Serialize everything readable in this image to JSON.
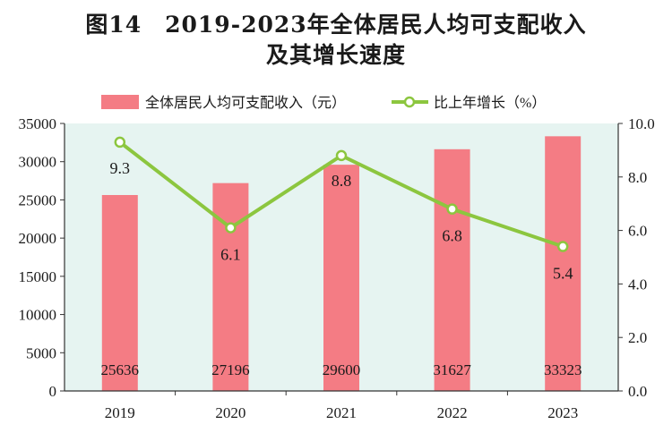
{
  "title_line1": "图14　2019-2023年全体居民人均可支配收入",
  "title_line2": "及其增长速度",
  "colors": {
    "bar": "#f47c84",
    "line": "#8cc63f",
    "plot_bg": "#e6f4f1",
    "axis": "#333333"
  },
  "chart_data": {
    "type": "bar",
    "categories": [
      "2019",
      "2020",
      "2021",
      "2022",
      "2023"
    ],
    "series": [
      {
        "name": "全体居民人均可支配收入（元）",
        "type": "bar",
        "axis": "left",
        "values": [
          25636,
          27196,
          29600,
          31627,
          33323
        ],
        "labels": [
          "25636",
          "27196",
          "29600",
          "31627",
          "33323"
        ]
      },
      {
        "name": "比上年增长（%）",
        "type": "line",
        "axis": "right",
        "values": [
          9.3,
          6.1,
          8.8,
          6.8,
          5.4
        ],
        "labels": [
          "9.3",
          "6.1",
          "8.8",
          "6.8",
          "5.4"
        ]
      }
    ],
    "y_left": {
      "min": 0,
      "max": 35000,
      "ticks": [
        "0",
        "5000",
        "10000",
        "15000",
        "20000",
        "25000",
        "30000",
        "35000"
      ]
    },
    "y_right": {
      "min": 0,
      "max": 10,
      "ticks": [
        "0.0",
        "2.0",
        "4.0",
        "6.0",
        "8.0",
        "10.0"
      ]
    },
    "legend_position": "top-center",
    "grid": false
  }
}
